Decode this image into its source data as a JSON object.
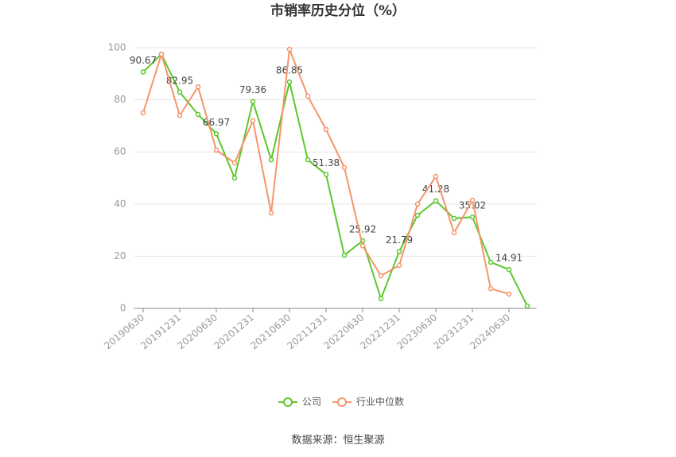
{
  "chart_data": {
    "type": "line",
    "title": "市销率历史分位（%）",
    "source": "数据来源：恒生聚源",
    "categories": [
      "20190630",
      null,
      "20191231",
      null,
      "20200630",
      null,
      "20201231",
      null,
      "20210630",
      null,
      "20211231",
      null,
      "20220630",
      null,
      "20221231",
      null,
      "20230630",
      null,
      "20231231",
      null,
      "20240630",
      null
    ],
    "series": [
      {
        "name": "公司",
        "color": "#5cc72e",
        "values": [
          90.67,
          97.5,
          82.95,
          74.4,
          66.97,
          50,
          79.36,
          57,
          86.85,
          57,
          51.38,
          20.4,
          25.92,
          3.7,
          21.79,
          35.7,
          41.28,
          34.5,
          35.02,
          17.7,
          14.91,
          0.9
        ]
      },
      {
        "name": "行业中位数",
        "color": "#f5956b",
        "values": [
          75,
          97.5,
          74,
          85,
          60.7,
          55.8,
          72,
          36.6,
          99.4,
          81.4,
          68.6,
          54,
          24,
          12.5,
          16.5,
          40,
          50.6,
          29,
          41.5,
          7.6,
          5.5,
          null
        ]
      }
    ],
    "ylim": [
      0,
      100
    ],
    "yticks": [
      0,
      20,
      40,
      60,
      80,
      100
    ],
    "grid": true
  }
}
